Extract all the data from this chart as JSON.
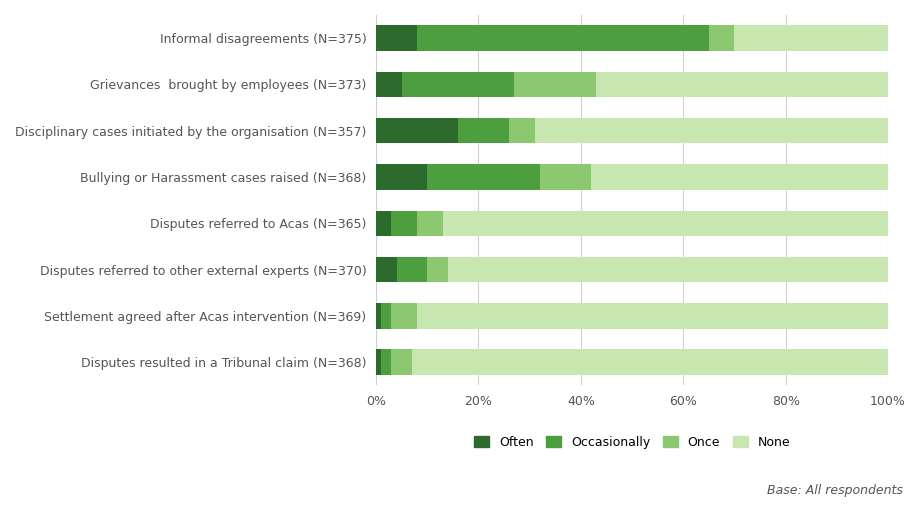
{
  "categories": [
    "Informal disagreements (N=375)",
    "Grievances  brought by employees (N=373)",
    "Disciplinary cases initiated by the organisation (N=357)",
    "Bullying or Harassment cases raised (N=368)",
    "Disputes referred to Acas (N=365)",
    "Disputes referred to other external experts (N=370)",
    "Settlement agreed after Acas intervention (N=369)",
    "Disputes resulted in a Tribunal claim (N=368)"
  ],
  "series": {
    "Often": [
      8,
      5,
      16,
      10,
      3,
      4,
      1,
      1
    ],
    "Occasionally": [
      57,
      22,
      10,
      22,
      5,
      6,
      2,
      2
    ],
    "Once": [
      5,
      16,
      5,
      10,
      5,
      4,
      5,
      4
    ],
    "None": [
      30,
      57,
      69,
      58,
      87,
      86,
      92,
      93
    ]
  },
  "colors": {
    "Often": "#2d6a2d",
    "Occasionally": "#4d9e3f",
    "Once": "#8cc870",
    "None": "#c8e6b0"
  },
  "legend_order": [
    "Often",
    "Occasionally",
    "Once",
    "None"
  ],
  "background_color": "#ffffff",
  "grid_color": "#d0d0d0",
  "note": "Base: All respondents"
}
